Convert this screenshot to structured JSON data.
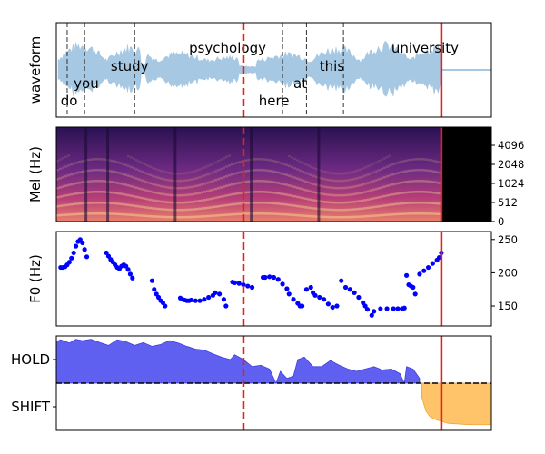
{
  "chart_data": [
    {
      "type": "area",
      "panel": "waveform",
      "ylabel": "waveform",
      "x_range": [
        0,
        10
      ],
      "end_marker": 8.85,
      "vad_split": 4.3,
      "word_boundaries": [
        0.25,
        0.65,
        1.8,
        5.2,
        5.75,
        6.6
      ],
      "words": [
        {
          "text": "do",
          "x": 0.1,
          "row": 3
        },
        {
          "text": "you",
          "x": 0.4,
          "row": 2
        },
        {
          "text": "study",
          "x": 1.25,
          "row": 1
        },
        {
          "text": "psychology",
          "x": 3.05,
          "row": 0
        },
        {
          "text": "here",
          "x": 4.65,
          "row": 3
        },
        {
          "text": "at",
          "x": 5.45,
          "row": 2
        },
        {
          "text": "this",
          "x": 6.05,
          "row": 1
        },
        {
          "text": "university",
          "x": 7.7,
          "row": 0
        }
      ],
      "color": "#a6c8e3"
    },
    {
      "type": "heatmap",
      "panel": "mel",
      "ylabel": "Mel (Hz)",
      "y_ticks": [
        "0",
        "512",
        "1024",
        "2048",
        "4096"
      ],
      "x_range": [
        0,
        10
      ],
      "end_marker": 8.85,
      "vad_split": 4.3
    },
    {
      "type": "scatter",
      "panel": "f0",
      "ylabel": "F0 (Hz)",
      "y_ticks": [
        150,
        200,
        250
      ],
      "ylim": [
        120,
        262
      ],
      "x_range": [
        0,
        10
      ],
      "end_marker": 8.85,
      "vad_split": 4.3,
      "color": "#0000ff",
      "points": [
        [
          0.1,
          208
        ],
        [
          0.15,
          208
        ],
        [
          0.2,
          209
        ],
        [
          0.25,
          212
        ],
        [
          0.3,
          216
        ],
        [
          0.35,
          222
        ],
        [
          0.4,
          230
        ],
        [
          0.45,
          240
        ],
        [
          0.5,
          247
        ],
        [
          0.55,
          250
        ],
        [
          0.6,
          245
        ],
        [
          0.65,
          235
        ],
        [
          0.7,
          224
        ],
        [
          1.15,
          230
        ],
        [
          1.2,
          225
        ],
        [
          1.25,
          220
        ],
        [
          1.3,
          216
        ],
        [
          1.35,
          212
        ],
        [
          1.4,
          208
        ],
        [
          1.45,
          206
        ],
        [
          1.5,
          210
        ],
        [
          1.55,
          212
        ],
        [
          1.6,
          210
        ],
        [
          1.65,
          205
        ],
        [
          1.7,
          198
        ],
        [
          1.75,
          192
        ],
        [
          2.2,
          188
        ],
        [
          2.25,
          175
        ],
        [
          2.3,
          168
        ],
        [
          2.35,
          163
        ],
        [
          2.4,
          158
        ],
        [
          2.45,
          155
        ],
        [
          2.5,
          150
        ],
        [
          2.85,
          162
        ],
        [
          2.9,
          160
        ],
        [
          2.95,
          159
        ],
        [
          3.0,
          158
        ],
        [
          3.05,
          158
        ],
        [
          3.1,
          159
        ],
        [
          3.2,
          158
        ],
        [
          3.3,
          158
        ],
        [
          3.4,
          160
        ],
        [
          3.5,
          163
        ],
        [
          3.6,
          166
        ],
        [
          3.65,
          170
        ],
        [
          3.75,
          168
        ],
        [
          3.85,
          160
        ],
        [
          3.9,
          150
        ],
        [
          4.05,
          186
        ],
        [
          4.1,
          185
        ],
        [
          4.2,
          184
        ],
        [
          4.3,
          182
        ],
        [
          4.4,
          180
        ],
        [
          4.5,
          178
        ],
        [
          4.75,
          193
        ],
        [
          4.8,
          193
        ],
        [
          4.9,
          194
        ],
        [
          5.0,
          193
        ],
        [
          5.1,
          190
        ],
        [
          5.2,
          183
        ],
        [
          5.3,
          176
        ],
        [
          5.35,
          168
        ],
        [
          5.45,
          160
        ],
        [
          5.55,
          154
        ],
        [
          5.6,
          150
        ],
        [
          5.65,
          150
        ],
        [
          5.75,
          175
        ],
        [
          5.85,
          178
        ],
        [
          5.9,
          170
        ],
        [
          5.95,
          166
        ],
        [
          6.05,
          163
        ],
        [
          6.15,
          160
        ],
        [
          6.25,
          153
        ],
        [
          6.35,
          148
        ],
        [
          6.45,
          150
        ],
        [
          6.55,
          188
        ],
        [
          6.65,
          178
        ],
        [
          6.75,
          175
        ],
        [
          6.85,
          170
        ],
        [
          6.95,
          163
        ],
        [
          7.05,
          155
        ],
        [
          7.1,
          150
        ],
        [
          7.15,
          145
        ],
        [
          7.25,
          136
        ],
        [
          7.3,
          142
        ],
        [
          7.45,
          146
        ],
        [
          7.6,
          146
        ],
        [
          7.75,
          146
        ],
        [
          7.85,
          146
        ],
        [
          7.95,
          146
        ],
        [
          8.0,
          147
        ],
        [
          8.05,
          196
        ],
        [
          8.1,
          182
        ],
        [
          8.15,
          180
        ],
        [
          8.2,
          178
        ],
        [
          8.25,
          168
        ],
        [
          8.35,
          198
        ],
        [
          8.45,
          203
        ],
        [
          8.55,
          208
        ],
        [
          8.65,
          214
        ],
        [
          8.75,
          219
        ],
        [
          8.8,
          223
        ],
        [
          8.85,
          230
        ]
      ]
    },
    {
      "type": "area",
      "panel": "vap",
      "y_ticks": [
        "HOLD",
        "SHIFT"
      ],
      "ylim": [
        -1,
        1
      ],
      "threshold": 0,
      "x_range": [
        0,
        10
      ],
      "end_marker": 8.85,
      "vad_split": 4.3,
      "hold_color": "#6060f0",
      "shift_color": "#ffc46a",
      "values": [
        [
          0,
          0.88
        ],
        [
          0.1,
          0.92
        ],
        [
          0.3,
          0.85
        ],
        [
          0.45,
          0.93
        ],
        [
          0.6,
          0.9
        ],
        [
          0.8,
          0.93
        ],
        [
          1.0,
          0.86
        ],
        [
          1.2,
          0.8
        ],
        [
          1.4,
          0.92
        ],
        [
          1.6,
          0.88
        ],
        [
          1.8,
          0.8
        ],
        [
          2.0,
          0.86
        ],
        [
          2.2,
          0.78
        ],
        [
          2.4,
          0.82
        ],
        [
          2.6,
          0.9
        ],
        [
          2.8,
          0.85
        ],
        [
          3.0,
          0.78
        ],
        [
          3.2,
          0.72
        ],
        [
          3.4,
          0.7
        ],
        [
          3.6,
          0.62
        ],
        [
          3.8,
          0.55
        ],
        [
          4.0,
          0.5
        ],
        [
          4.1,
          0.6
        ],
        [
          4.3,
          0.5
        ],
        [
          4.5,
          0.35
        ],
        [
          4.7,
          0.38
        ],
        [
          4.9,
          0.3
        ],
        [
          5.05,
          0.0
        ],
        [
          5.15,
          0.25
        ],
        [
          5.3,
          0.1
        ],
        [
          5.45,
          0.15
        ],
        [
          5.55,
          0.5
        ],
        [
          5.7,
          0.55
        ],
        [
          5.9,
          0.35
        ],
        [
          6.1,
          0.35
        ],
        [
          6.3,
          0.48
        ],
        [
          6.5,
          0.38
        ],
        [
          6.7,
          0.3
        ],
        [
          6.9,
          0.25
        ],
        [
          7.1,
          0.3
        ],
        [
          7.3,
          0.35
        ],
        [
          7.5,
          0.28
        ],
        [
          7.7,
          0.3
        ],
        [
          7.9,
          0.2
        ],
        [
          8.0,
          0.0
        ],
        [
          8.05,
          0.35
        ],
        [
          8.2,
          0.3
        ],
        [
          8.35,
          0.1
        ],
        [
          8.4,
          -0.3
        ],
        [
          8.5,
          -0.6
        ],
        [
          8.6,
          -0.72
        ],
        [
          8.75,
          -0.78
        ],
        [
          9.0,
          -0.85
        ],
        [
          9.5,
          -0.88
        ],
        [
          10.0,
          -0.88
        ]
      ]
    }
  ]
}
